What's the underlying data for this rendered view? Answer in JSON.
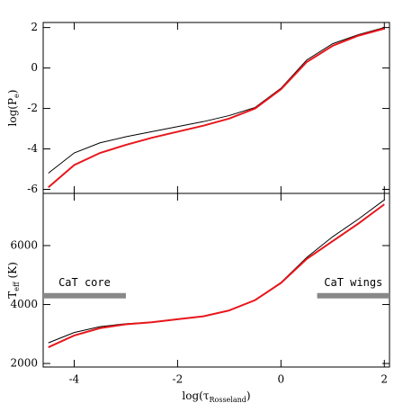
{
  "chart_data": [
    {
      "type": "line",
      "ylabel": [
        "log(P",
        "e",
        ")"
      ],
      "x": [
        -4.5,
        -4,
        -3.5,
        -3,
        -2.5,
        -2,
        -1.5,
        -1,
        -0.5,
        0,
        0.5,
        1,
        1.5,
        2
      ],
      "series": [
        {
          "color": "#000000",
          "width": 1,
          "values": [
            -5.2,
            -4.2,
            -3.7,
            -3.4,
            -3.15,
            -2.9,
            -2.65,
            -2.35,
            -1.95,
            -1.0,
            0.4,
            1.2,
            1.65,
            2.0
          ]
        },
        {
          "color": "#e8161b",
          "width": 2,
          "values": [
            -5.9,
            -4.8,
            -4.2,
            -3.8,
            -3.45,
            -3.15,
            -2.85,
            -2.5,
            -2.0,
            -1.05,
            0.3,
            1.1,
            1.6,
            1.95
          ]
        }
      ],
      "xlim": [
        -4.6,
        2.1
      ],
      "ylim": [
        -6.2,
        2.25
      ],
      "xticks": [
        -4,
        -2,
        0,
        2
      ],
      "yticks": [
        -6,
        -4,
        -2,
        0,
        2
      ],
      "xtick_labels": false
    },
    {
      "type": "line",
      "ylabel": [
        "T",
        "eff",
        " (K)"
      ],
      "xlabel": [
        "log(τ",
        "Rosseland",
        ")"
      ],
      "x": [
        -4.5,
        -4,
        -3.5,
        -3,
        -2.5,
        -2,
        -1.5,
        -1,
        -0.5,
        0,
        0.5,
        1,
        1.5,
        2
      ],
      "series": [
        {
          "color": "#000000",
          "width": 1,
          "values": [
            2700,
            3050,
            3250,
            3350,
            3400,
            3500,
            3600,
            3800,
            4150,
            4750,
            5600,
            6300,
            6900,
            7550
          ]
        },
        {
          "color": "#e8161b",
          "width": 2,
          "values": [
            2550,
            2950,
            3200,
            3330,
            3400,
            3500,
            3600,
            3800,
            4150,
            4730,
            5550,
            6150,
            6750,
            7400
          ]
        }
      ],
      "annotations": [
        {
          "text": "CaT core",
          "x": [
            -4.6,
            -3
          ],
          "y": 4300
        },
        {
          "text": "CaT wings",
          "x": [
            0.7,
            2.1
          ],
          "y": 4300
        }
      ],
      "xlim": [
        -4.6,
        2.1
      ],
      "ylim": [
        1880,
        7770
      ],
      "xticks": [
        -4,
        -2,
        0,
        2
      ],
      "yticks": [
        2000,
        4000,
        6000
      ],
      "xtick_labels": true
    }
  ]
}
